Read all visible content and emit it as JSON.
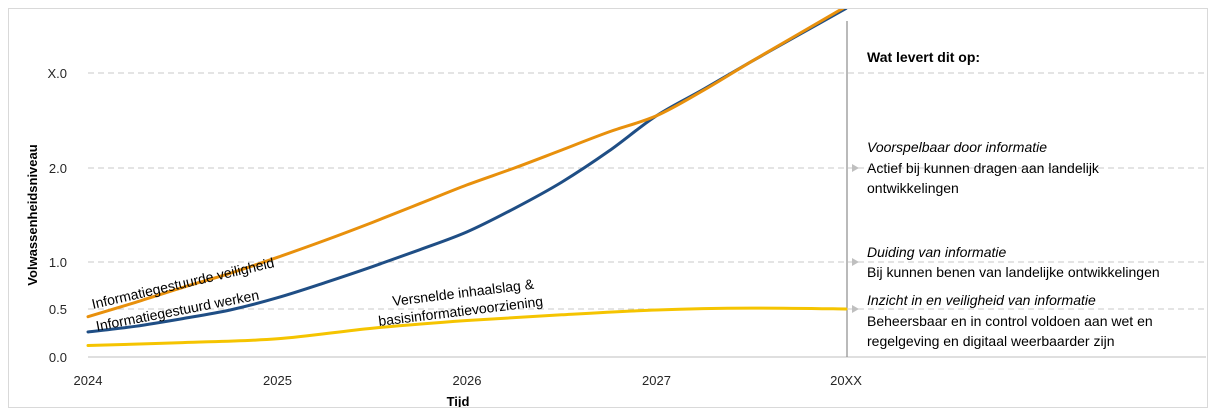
{
  "chart_data": {
    "type": "line",
    "xlabel": "Tijd",
    "ylabel": "Volwassenheidsniveau",
    "x_categories": [
      "2024",
      "2025",
      "2026",
      "2027",
      "20XX"
    ],
    "y_ticks": [
      "0.0",
      "0.5",
      "1.0",
      "2.0",
      "X.0"
    ],
    "colors": {
      "orange": "#E8900C",
      "blue": "#1F4E85",
      "yellow": "#F5C400",
      "grid": "#c8c8c8",
      "divider": "#8c8c8c"
    },
    "series": [
      {
        "name": "Informatiegestuurde veiligheid",
        "color": "orange",
        "x": [
          0,
          0.25,
          0.5,
          0.75,
          1,
          1.25,
          1.5,
          1.75,
          2,
          2.25,
          2.5,
          2.75,
          3,
          3.25,
          3.5,
          3.75,
          4
        ],
        "y": [
          0.42,
          0.57,
          0.73,
          0.88,
          1.05,
          1.23,
          1.42,
          1.62,
          1.82,
          2.0,
          2.19,
          2.38,
          2.55,
          2.82,
          3.12,
          3.41,
          3.7
        ]
      },
      {
        "name": "Informatiegestuurd werken",
        "color": "blue",
        "x": [
          0,
          0.25,
          0.5,
          0.75,
          1,
          1.25,
          1.5,
          1.75,
          2,
          2.25,
          2.5,
          2.75,
          3,
          3.25,
          3.5,
          3.75,
          4
        ],
        "y": [
          0.26,
          0.32,
          0.4,
          0.49,
          0.62,
          0.78,
          0.95,
          1.13,
          1.32,
          1.57,
          1.85,
          2.18,
          2.55,
          2.83,
          3.12,
          3.4,
          3.68
        ]
      },
      {
        "name": "Versnelde inhaalslag & basisinformatievoorziening",
        "label_lines": [
          "Versnelde inhaalslag &",
          "basisinformatievoorziening"
        ],
        "color": "yellow",
        "x": [
          0,
          0.5,
          1,
          1.5,
          2,
          2.5,
          3,
          3.5,
          4
        ],
        "y": [
          0.12,
          0.15,
          0.19,
          0.3,
          0.38,
          0.44,
          0.49,
          0.51,
          0.5
        ]
      }
    ],
    "grid": true
  },
  "panel": {
    "title": "Wat levert dit op:",
    "levels": [
      {
        "heading": "Voorspelbaar door informatie",
        "lines": [
          "Actief bij kunnen dragen aan landelijk",
          "ontwikkelingen"
        ]
      },
      {
        "heading": "Duiding van informatie",
        "lines": [
          "Bij kunnen benen van landelijke ontwikkelingen"
        ]
      },
      {
        "heading": "Inzicht in en veiligheid van informatie",
        "lines": [
          "Beheersbaar en in control voldoen aan wet en",
          "regelgeving en digitaal weerbaarder zijn"
        ]
      }
    ]
  }
}
